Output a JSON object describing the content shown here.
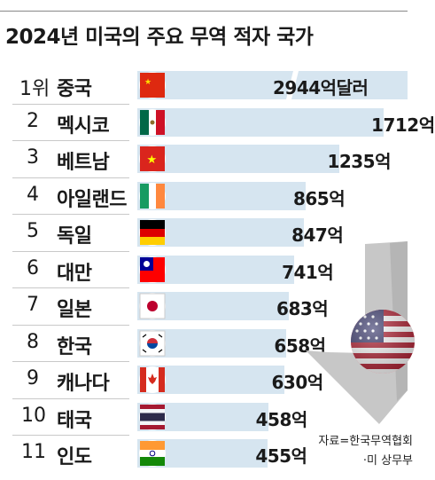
{
  "title": "2024년 미국의 주요 무역 적자 국가",
  "unit": "억달러",
  "unit_short": "억",
  "source_lines": [
    "자료=한국무역협회",
    "·미 상무부"
  ],
  "chart_data": {
    "type": "bar",
    "orientation": "horizontal",
    "title": "2024년 미국의 주요 무역 적자 국가",
    "ranks": [
      "1위",
      "2",
      "3",
      "4",
      "5",
      "6",
      "7",
      "8",
      "9",
      "10",
      "11"
    ],
    "categories": [
      "중국",
      "멕시코",
      "베트남",
      "아일랜드",
      "독일",
      "대만",
      "일본",
      "한국",
      "캐나다",
      "태국",
      "인도"
    ],
    "values": [
      2944,
      1712,
      1235,
      865,
      847,
      741,
      683,
      658,
      630,
      458,
      455
    ],
    "value_labels": [
      "2944억달러",
      "1712억",
      "1235억",
      "865억",
      "847억",
      "741억",
      "683억",
      "658억",
      "630억",
      "458억",
      "455억"
    ],
    "bar_color": "#d6e5f0",
    "axis_break_on_first_bar": true
  }
}
